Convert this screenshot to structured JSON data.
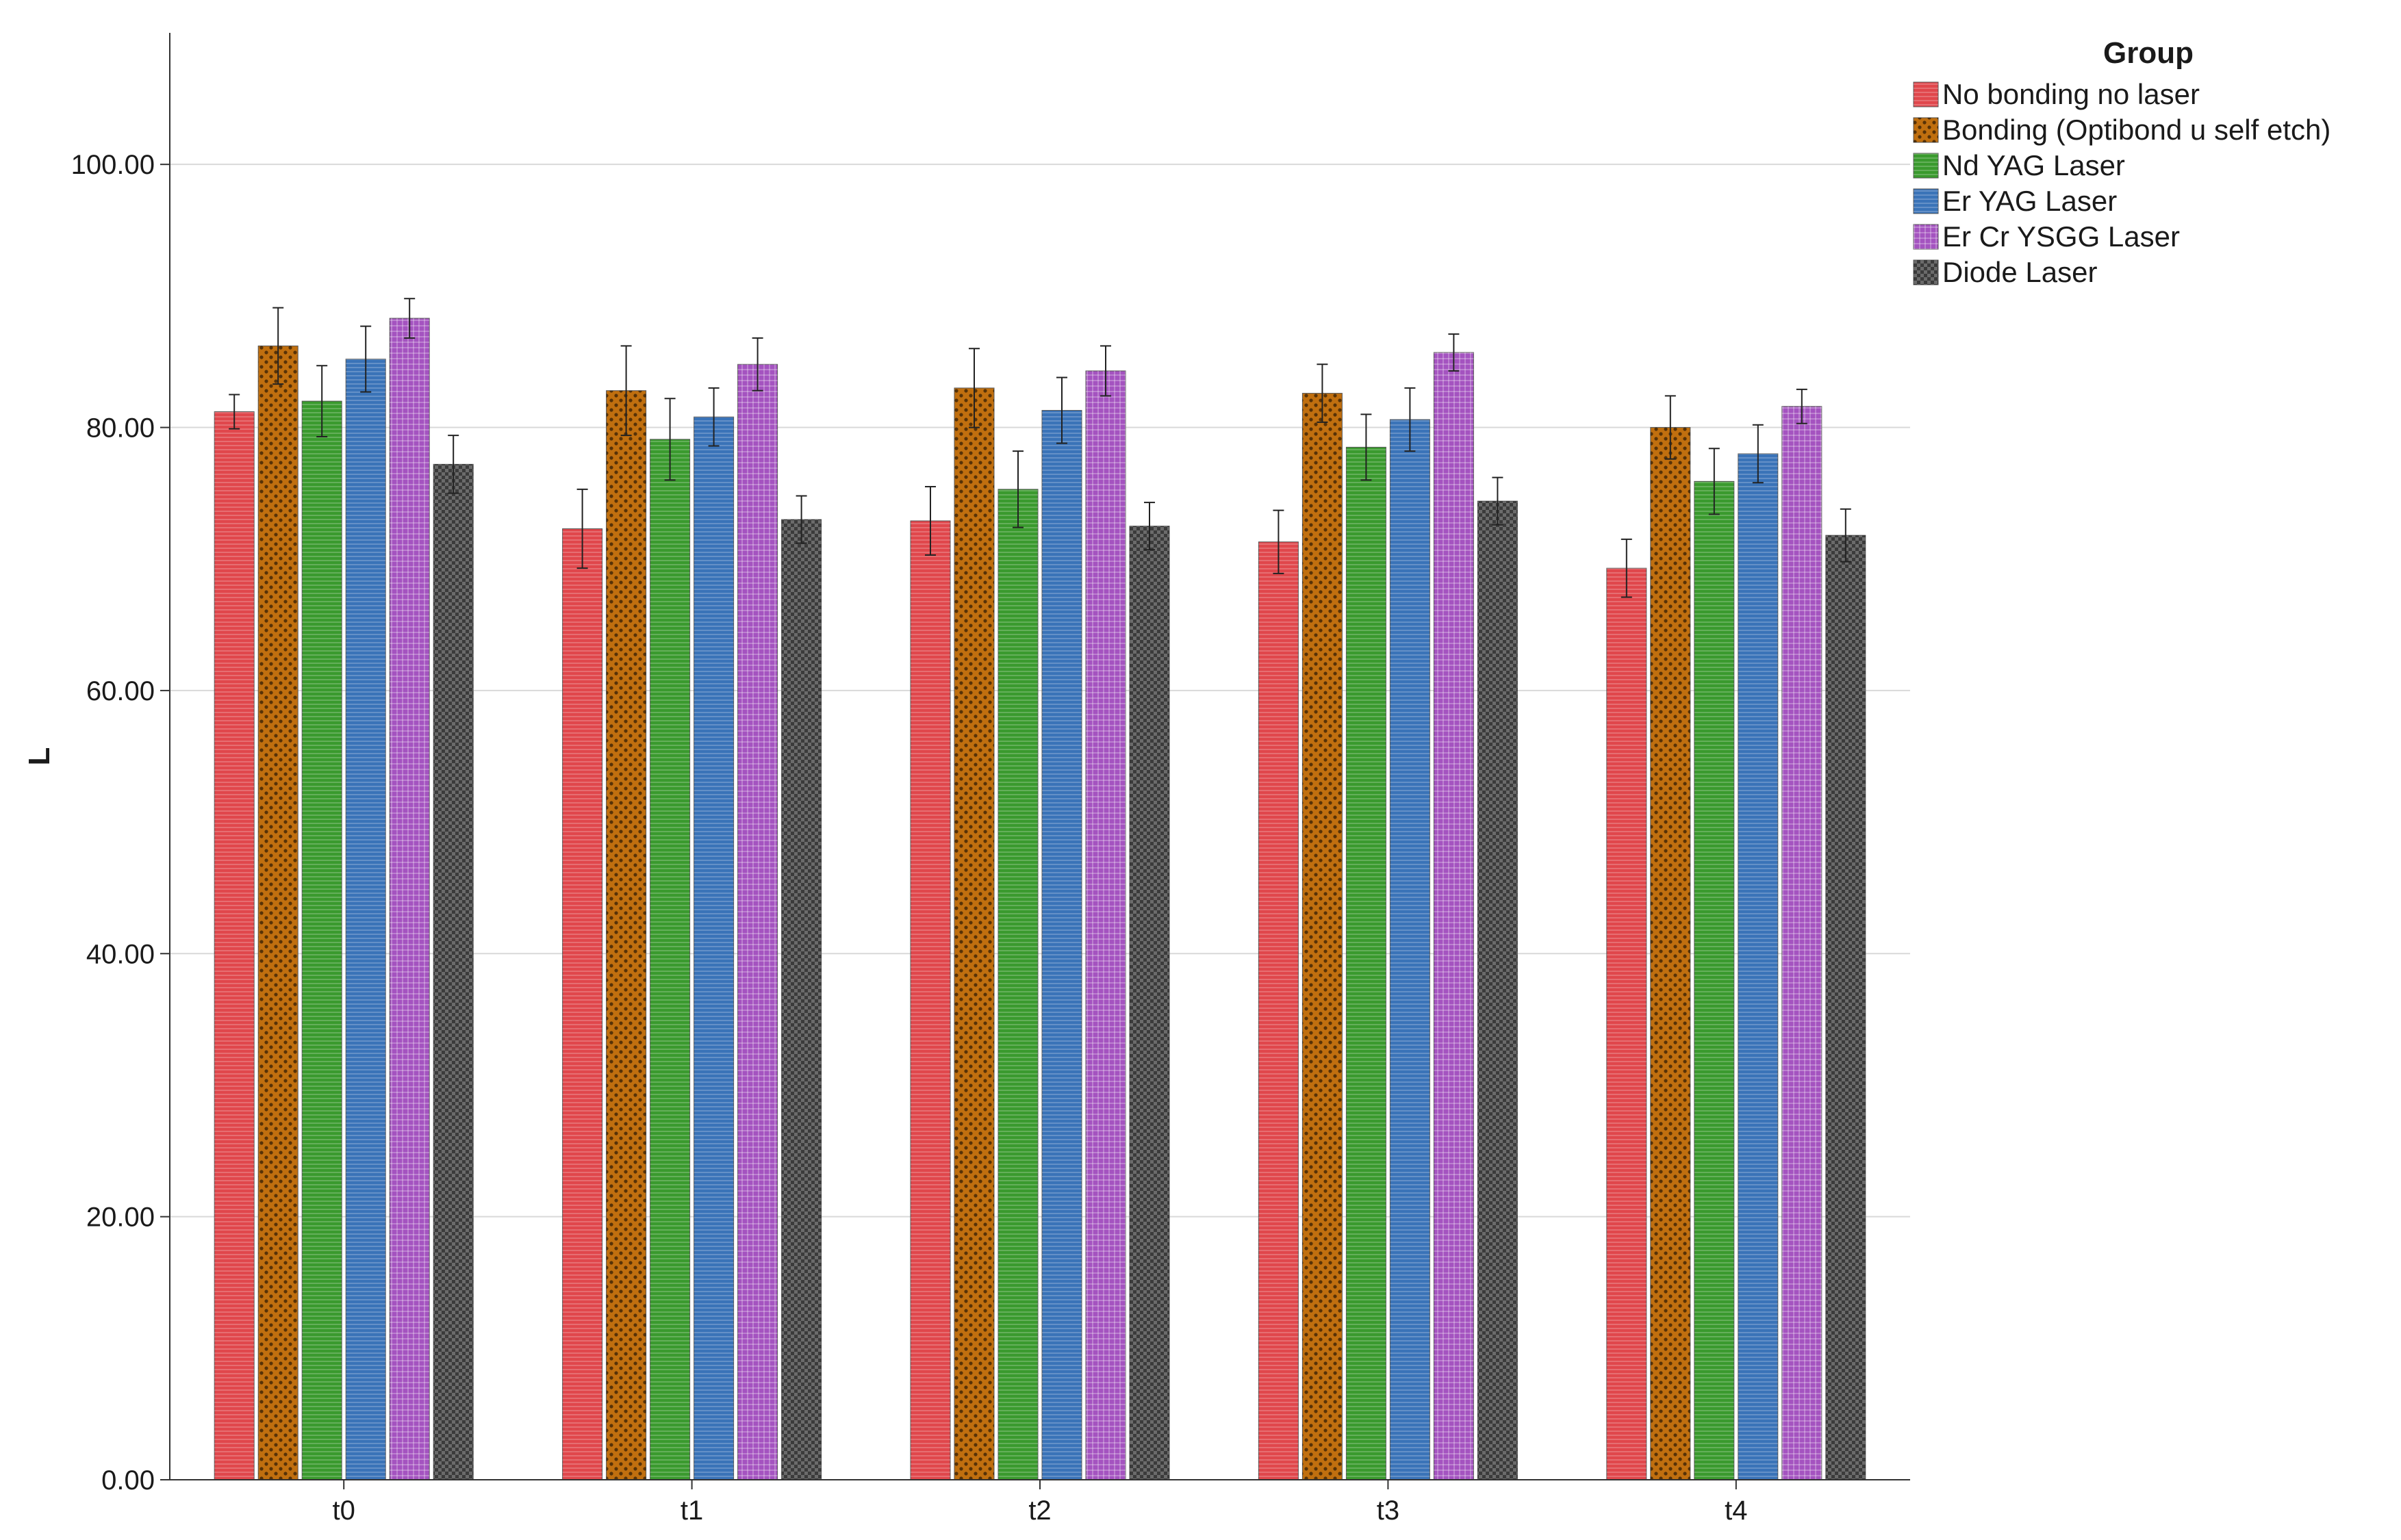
{
  "chart_data": {
    "type": "bar",
    "title": "",
    "xlabel": "",
    "ylabel": "L",
    "ylim": [
      0,
      110
    ],
    "yticks": [
      0,
      20,
      40,
      60,
      80,
      100
    ],
    "ytick_labels": [
      "0.00",
      "20.00",
      "40.00",
      "60.00",
      "80.00",
      "100.00"
    ],
    "grid": true,
    "legend_title": "Group",
    "legend_position": "top-right",
    "categories": [
      "t0",
      "t1",
      "t2",
      "t3",
      "t4"
    ],
    "series": [
      {
        "name": "No bonding no laser",
        "color": "#e0474c",
        "pattern": "hlines",
        "values": [
          81.2,
          72.3,
          72.9,
          71.3,
          69.3
        ],
        "errors": [
          1.3,
          3.0,
          2.6,
          2.4,
          2.2
        ]
      },
      {
        "name": "Bonding (Optibond u self etch)",
        "color": "#c06f0f",
        "pattern": "dots",
        "values": [
          86.2,
          82.8,
          83.0,
          82.6,
          80.0
        ],
        "errors": [
          2.9,
          3.4,
          3.0,
          2.2,
          2.4
        ]
      },
      {
        "name": "Nd YAG Laser",
        "color": "#3a9a2e",
        "pattern": "hlines",
        "values": [
          82.0,
          79.1,
          75.3,
          78.5,
          75.9
        ],
        "errors": [
          2.7,
          3.1,
          2.9,
          2.5,
          2.5
        ]
      },
      {
        "name": "Er YAG Laser",
        "color": "#3a73b8",
        "pattern": "hlines",
        "values": [
          85.2,
          80.8,
          81.3,
          80.6,
          78.0
        ],
        "errors": [
          2.5,
          2.2,
          2.5,
          2.4,
          2.2
        ]
      },
      {
        "name": "Er Cr YSGG Laser",
        "color": "#a453c0",
        "pattern": "grid",
        "values": [
          88.3,
          84.8,
          84.3,
          85.7,
          81.6
        ],
        "errors": [
          1.5,
          2.0,
          1.9,
          1.4,
          1.3
        ]
      },
      {
        "name": "Diode Laser",
        "color": "#6b6b6b",
        "pattern": "checker",
        "values": [
          77.2,
          73.0,
          72.5,
          74.4,
          71.8
        ],
        "errors": [
          2.2,
          1.8,
          1.8,
          1.8,
          2.0
        ]
      }
    ]
  }
}
